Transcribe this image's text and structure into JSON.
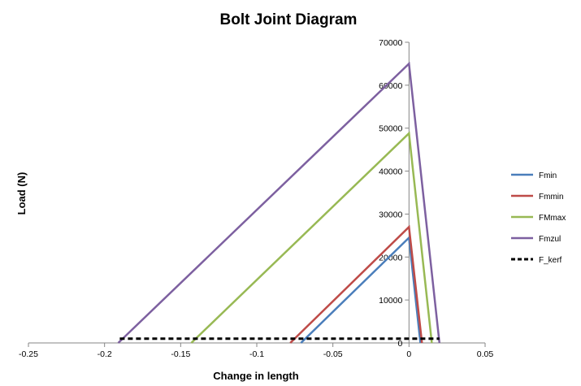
{
  "chart_data": {
    "type": "line",
    "title": "Bolt Joint Diagram",
    "xlabel": "Change in length",
    "ylabel": "Load (N)",
    "xlim": [
      -0.25,
      0.05
    ],
    "ylim": [
      0,
      70000
    ],
    "xticks": [
      -0.25,
      -0.2,
      -0.15,
      -0.1,
      -0.05,
      0,
      0.05
    ],
    "xtick_labels": [
      "-0.25",
      "-0.2",
      "-0.15",
      "-0.1",
      "-0.05",
      "0",
      "0.05"
    ],
    "yticks": [
      0,
      10000,
      20000,
      30000,
      40000,
      50000,
      60000,
      70000
    ],
    "ytick_labels": [
      "0",
      "10000",
      "20000",
      "30000",
      "40000",
      "50000",
      "60000",
      "70000"
    ],
    "grid": false,
    "legend": "right",
    "series": [
      {
        "name": "Fmin",
        "color": "#4a7ebb",
        "dash": "solid",
        "x": [
          -0.071,
          0,
          0.0075
        ],
        "y": [
          0,
          24500,
          0
        ]
      },
      {
        "name": "Fmmin",
        "color": "#be4b48",
        "dash": "solid",
        "x": [
          -0.078,
          0,
          0.0085
        ],
        "y": [
          0,
          27000,
          0
        ]
      },
      {
        "name": "FMmax",
        "color": "#98b954",
        "dash": "solid",
        "x": [
          -0.143,
          0,
          0.015
        ],
        "y": [
          0,
          48800,
          0
        ]
      },
      {
        "name": "Fmzul",
        "color": "#7d60a0",
        "dash": "solid",
        "x": [
          -0.191,
          0,
          0.02
        ],
        "y": [
          0,
          65000,
          0
        ]
      },
      {
        "name": "F_kerf",
        "color": "#000000",
        "dash": "dashed",
        "x": [
          -0.19,
          0.02
        ],
        "y": [
          1000,
          1000
        ]
      }
    ]
  }
}
